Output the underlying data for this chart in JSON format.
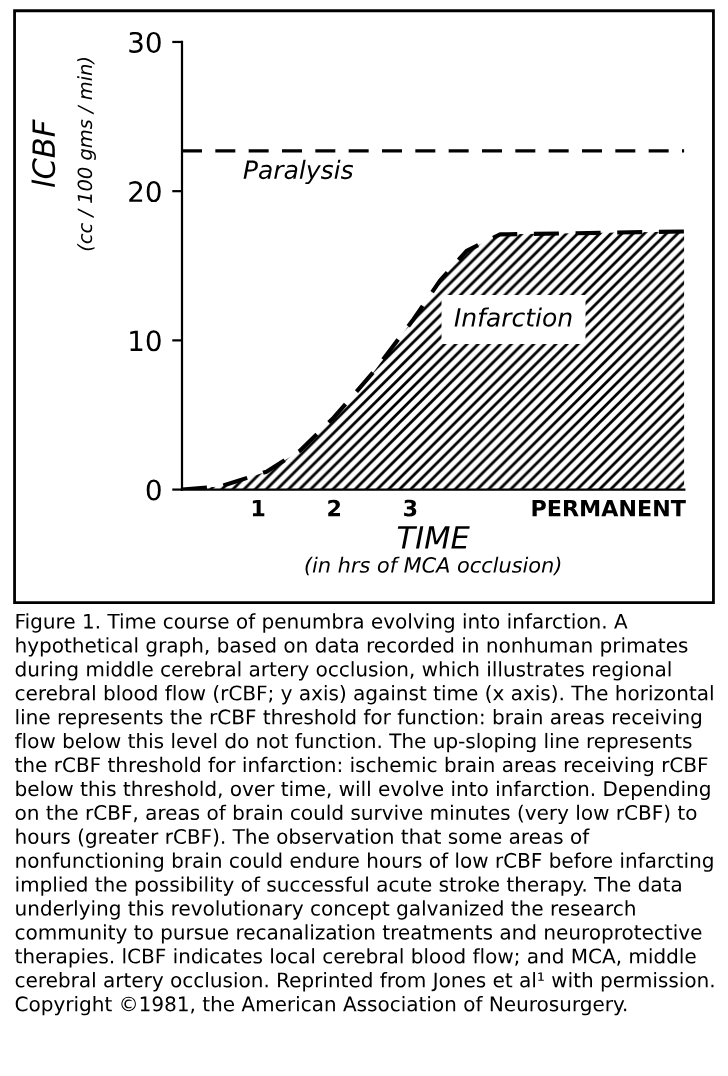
{
  "chart_data": {
    "type": "area",
    "xlabel": "TIME\n(in hrs of MCA occlusion)",
    "ylabel": "lCBF\n(cc / 100 gms / min)",
    "x": [
      0,
      0.5,
      1.11,
      1.55,
      1.99,
      2.52,
      3.04,
      3.39,
      3.74,
      4.18,
      6.6
    ],
    "series": [
      {
        "color": "#000000",
        "values": [
          0,
          0.2,
          1.2,
          2.6,
          4.8,
          7.9,
          11.4,
          14.0,
          16.0,
          17.1,
          17.3
        ]
      }
    ],
    "line_style": "dashed",
    "xlim": [
      0,
      6.6
    ],
    "ylim": [
      0,
      30
    ],
    "xticks": [
      1,
      2,
      3,
      {
        "value": 5.6,
        "label": "PERMANENT"
      }
    ],
    "yticks": [
      0,
      10,
      20,
      30
    ],
    "grid": false,
    "legend": false,
    "ref_lines": [
      {
        "axis": "y",
        "value": 22.7,
        "label": "Paralysis",
        "color": "#000000",
        "line_style": "dashed"
      }
    ],
    "annotations": [
      "Infarction",
      "Figure 1. Time course of penumbra evolving into infarction. A hypothetical graph, based on data recorded in nonhuman primates during middle cerebral artery occlusion, which illustrates regional cerebral blood flow (rCBF; y axis) against time (x axis). The horizontal line represents the rCBF threshold for function: brain areas receiving flow below this level do not function. The up-sloping line represents the rCBF threshold for infarction: ischemic brain areas receiving rCBF below this threshold, over time, will evolve into infarction. Depending on the rCBF, areas of brain could survive minutes (very low rCBF) to hours (greater rCBF). The observation that some areas of nonfunctioning brain could endure hours of low rCBF before infarcting implied the possibility of successful acute stroke therapy. The data underlying this revolutionary concept galvanized the research community to pursue recanalization treatments and neuroprotective therapies. lCBF indicates local cerebral blood flow; and MCA, middle cerebral artery occlusion. Reprinted from Jones et al¹ with permission. Copyright ©1981, the American Association of Neurosurgery."
    ]
  }
}
